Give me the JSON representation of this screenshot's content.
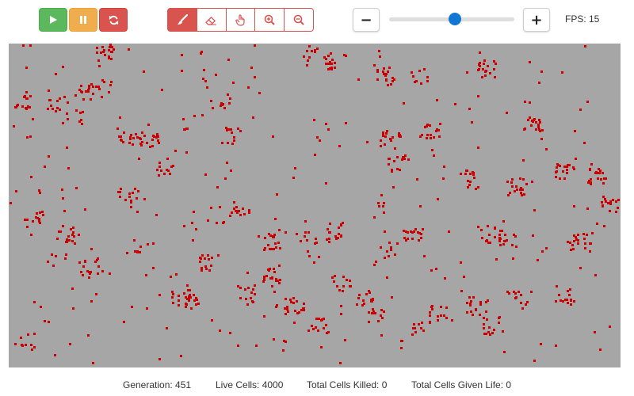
{
  "controls": {
    "play": {
      "icon": "play-icon"
    },
    "pause": {
      "icon": "pause-icon"
    },
    "reset": {
      "icon": "refresh-icon"
    }
  },
  "tools": [
    {
      "icon": "brush-icon",
      "active": true
    },
    {
      "icon": "eraser-icon",
      "active": false
    },
    {
      "icon": "hand-pointer-icon",
      "active": false
    },
    {
      "icon": "zoom-in-icon",
      "active": false
    },
    {
      "icon": "zoom-out-icon",
      "active": false
    }
  ],
  "speed": {
    "minus_label": "−",
    "plus_label": "+",
    "slider_fraction": 0.5,
    "fps_label": "FPS: 15"
  },
  "colors": {
    "grid_background": "#a6a6a6",
    "cell": "#cc0000",
    "play": "#5cb85c",
    "pause": "#f0ad4e",
    "danger": "#d9534f",
    "slider": "#0f78d4"
  },
  "stats": {
    "generation": "Generation: 451",
    "live_cells": "Live Cells: 4000",
    "killed": "Total Cells Killed: 0",
    "given_life": "Total Cells Given Life: 0"
  }
}
